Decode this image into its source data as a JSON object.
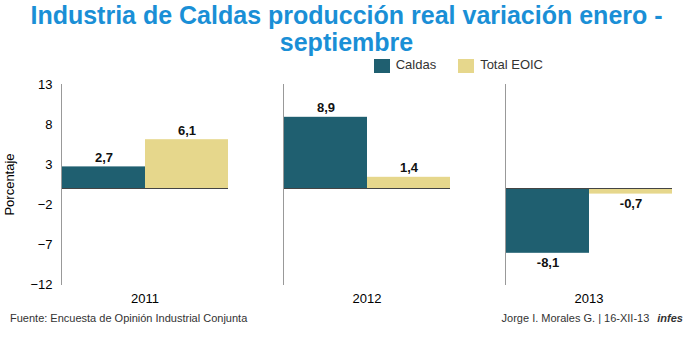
{
  "chart_data": {
    "type": "bar",
    "title": "Industria de Caldas producción real variación enero - septiembre",
    "y_label": "Porcentaje",
    "categories": [
      "2011",
      "2012",
      "2013"
    ],
    "series": [
      {
        "name": "Caldas",
        "color": "#1f5f70",
        "values": [
          2.7,
          8.9,
          -8.1
        ],
        "value_labels": [
          "2,7",
          "8,9",
          "-8,1"
        ]
      },
      {
        "name": "Total EOIC",
        "color": "#e6d78c",
        "values": [
          6.1,
          1.4,
          -0.7
        ],
        "value_labels": [
          "6,1",
          "1,4",
          "-0,7"
        ]
      }
    ],
    "ylim": [
      -12,
      13
    ],
    "yticks": [
      -12,
      -7,
      -2,
      3,
      8,
      13
    ],
    "grid": false,
    "legend": "top",
    "data_labels": true,
    "annotations": [
      "Fuente: Encuesta de Opinión Industrial Conjunta",
      "Jorge I. Morales G. | 16-XII-13",
      "infes"
    ]
  }
}
